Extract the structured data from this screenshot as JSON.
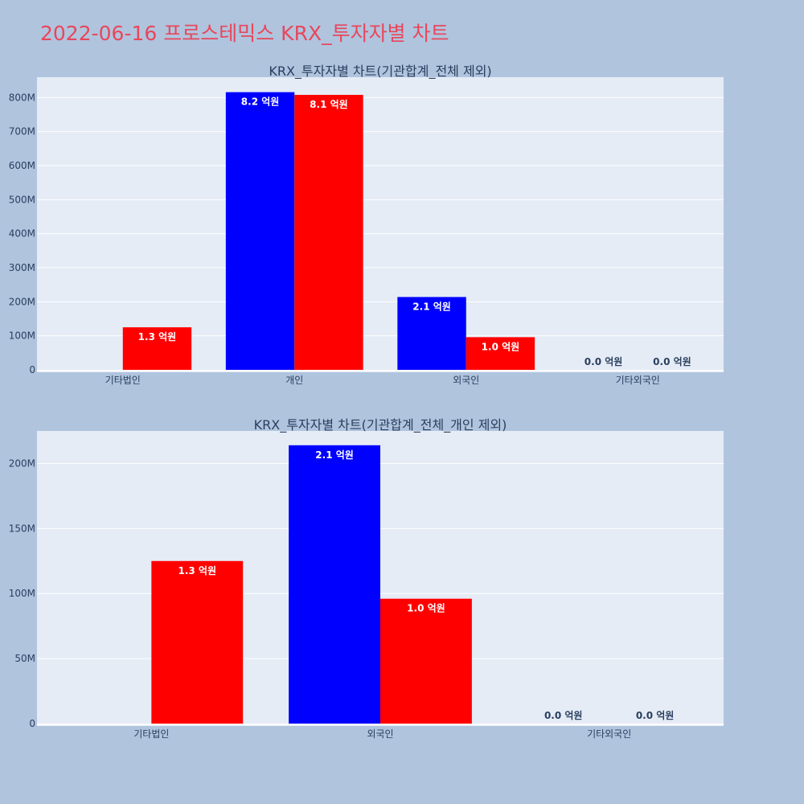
{
  "page": {
    "title": "2022-06-16 프로스테믹스 KRX_투자자별 차트"
  },
  "colors": {
    "buy": "#0000ff",
    "sell": "#ff0000",
    "background": "#b0c4de",
    "plot_bg": "#e5ecf6"
  },
  "chart_data": [
    {
      "type": "bar",
      "title": "KRX_투자자별 차트(기관합계_전체 제외)",
      "categories": [
        "기타법인",
        "개인",
        "외국인",
        "기타외국인"
      ],
      "ylim": [
        0,
        860000000
      ],
      "yticks": [
        0,
        100000000,
        200000000,
        300000000,
        400000000,
        500000000,
        600000000,
        700000000,
        800000000
      ],
      "ytick_labels": [
        "0",
        "100M",
        "200M",
        "300M",
        "400M",
        "500M",
        "600M",
        "700M",
        "800M"
      ],
      "grid": true,
      "series": [
        {
          "values": [
            0,
            816000000,
            214000000,
            0
          ],
          "labels": [
            "",
            "8.2 억원",
            "2.1 억원",
            "0.0 억원"
          ]
        },
        {
          "values": [
            125000000,
            808000000,
            96000000,
            0
          ],
          "labels": [
            "1.3 억원",
            "8.1 억원",
            "1.0 억원",
            "0.0 억원"
          ]
        }
      ]
    },
    {
      "type": "bar",
      "title": "KRX_투자자별 차트(기관합계_전체_개인 제외)",
      "categories": [
        "기타법인",
        "외국인",
        "기타외국인"
      ],
      "ylim": [
        0,
        225000000
      ],
      "yticks": [
        0,
        50000000,
        100000000,
        150000000,
        200000000
      ],
      "ytick_labels": [
        "0",
        "50M",
        "100M",
        "150M",
        "200M"
      ],
      "grid": true,
      "series": [
        {
          "values": [
            0,
            214000000,
            0
          ],
          "labels": [
            "",
            "2.1 억원",
            "0.0 억원"
          ]
        },
        {
          "values": [
            125000000,
            96000000,
            0
          ],
          "labels": [
            "1.3 억원",
            "1.0 억원",
            "0.0 억원"
          ]
        }
      ]
    }
  ]
}
